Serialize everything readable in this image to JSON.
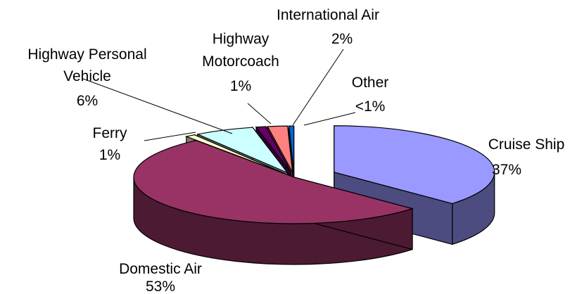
{
  "chart_data": {
    "type": "pie",
    "style": "3d-exploded",
    "title": "",
    "slices": [
      {
        "name": "Cruise Ship",
        "value": 37,
        "value_label": "37%",
        "color": "#9999ff",
        "side_color": "#4c4c80"
      },
      {
        "name": "Domestic Air",
        "value": 53,
        "value_label": "53%",
        "color": "#993366",
        "side_color": "#4c1a33"
      },
      {
        "name": "Ferry",
        "value": 1,
        "value_label": "1%",
        "color": "#ffffcc",
        "side_color": "#808066"
      },
      {
        "name": "Highway Personal Vehicle",
        "value": 6,
        "value_label": "6%",
        "color": "#ccffff",
        "side_color": "#668080"
      },
      {
        "name": "Highway Motorcoach",
        "value": 1,
        "value_label": "1%",
        "color": "#660066",
        "side_color": "#330033"
      },
      {
        "name": "International Air",
        "value": 2,
        "value_label": "2%",
        "color": "#ff8080",
        "side_color": "#804040"
      },
      {
        "name": "Other",
        "value": 0.5,
        "value_label": "<1%",
        "color": "#0066cc",
        "side_color": "#003366"
      }
    ]
  },
  "labels": {
    "cruise_name": "Cruise Ship",
    "cruise_pct": "37%",
    "domestic_name": "Domestic Air",
    "domestic_pct": "53%",
    "ferry_name": "Ferry",
    "ferry_pct": "1%",
    "hpv_line1": "Highway Personal",
    "hpv_line2": "Vehicle",
    "hpv_pct": "6%",
    "hm_line1": "Highway",
    "hm_line2": "Motorcoach",
    "hm_pct": "1%",
    "intl_name": "International Air",
    "intl_pct": "2%",
    "other_name": "Other",
    "other_pct": "<1%"
  }
}
